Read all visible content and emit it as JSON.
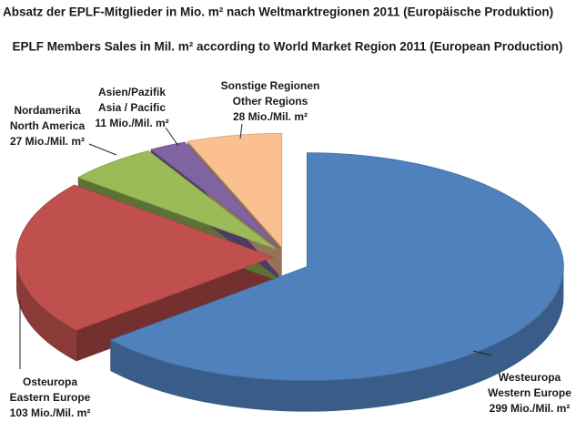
{
  "chart_data": {
    "type": "pie3d",
    "title": "Absatz der EPLF-Mitglieder in Mio. m² nach Weltmarktregionen  2011 (Europäische Produktion)",
    "subtitle": "EPLF Members Sales in Mil. m² according to World Market Region 2011 (European Production)",
    "categories": [
      "Westeuropa",
      "Osteuropa",
      "Nordamerika",
      "Asien/Pazifik",
      "Sonstige Regionen"
    ],
    "categories_en": [
      "Western Europe",
      "Eastern Europe",
      "North America",
      "Asia / Pacific",
      "Other Regions"
    ],
    "values": [
      299,
      103,
      27,
      11,
      28
    ],
    "value_labels": [
      "299 Mio./Mil. m²",
      "103 Mio./Mil. m²",
      "27 Mio./Mil. m²",
      "11 Mio./Mil. m²",
      "28 Mio./Mil. m²"
    ],
    "colors": [
      "#4f81bd",
      "#c0504d",
      "#9bbb59",
      "#8064a2",
      "#fac090"
    ]
  }
}
